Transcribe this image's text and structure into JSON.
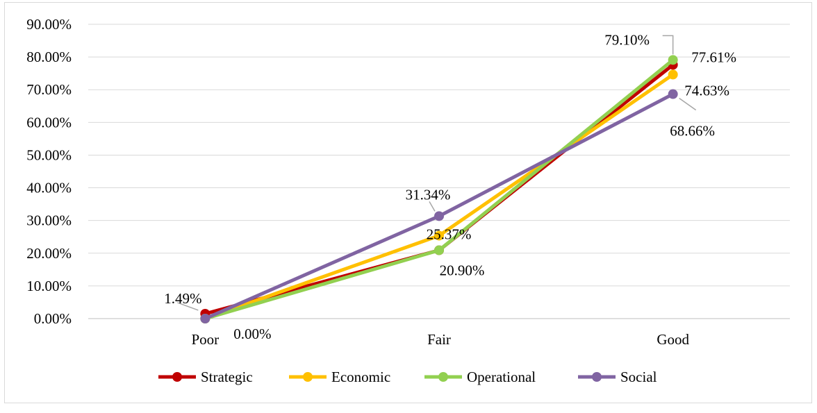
{
  "chart_data": {
    "type": "line",
    "categories": [
      "Poor",
      "Fair",
      "Good"
    ],
    "series": [
      {
        "name": "Strategic",
        "color": "#C00000",
        "values": [
          1.49,
          20.9,
          77.61
        ]
      },
      {
        "name": "Economic",
        "color": "#FFC000",
        "values": [
          0.0,
          25.37,
          74.63
        ]
      },
      {
        "name": "Operational",
        "color": "#92D050",
        "values": [
          0.0,
          20.9,
          79.1
        ]
      },
      {
        "name": "Social",
        "color": "#8064A2",
        "values": [
          0.0,
          31.34,
          68.66
        ]
      }
    ],
    "yticks": [
      "0.00%",
      "10.00%",
      "20.00%",
      "30.00%",
      "40.00%",
      "50.00%",
      "60.00%",
      "70.00%",
      "80.00%",
      "90.00%"
    ],
    "ylim": [
      0,
      90
    ],
    "grid": true,
    "legend": "bottom",
    "data_labels": [
      "1.49%",
      "0.00%",
      "31.34%",
      "25.37%",
      "20.90%",
      "79.10%",
      "77.61%",
      "74.63%",
      "68.66%"
    ]
  }
}
